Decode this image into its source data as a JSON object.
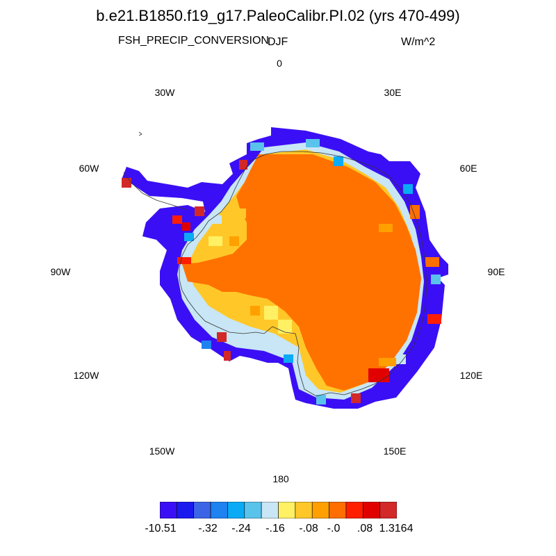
{
  "title": "b.e21.B1850.f19_g17.PaleoCalibr.PI.02 (yrs 470-499)",
  "variable": "FSH_PRECIP_CONVERSION",
  "season": "DJF",
  "units": "W/m^2",
  "longitude_labels": [
    "0",
    "30E",
    "60E",
    "90E",
    "120E",
    "150E",
    "180",
    "150W",
    "120W",
    "90W",
    "60W",
    "30W"
  ],
  "colorbar": {
    "colors": [
      "#3b0ff5",
      "#1a1aef",
      "#3c64e6",
      "#1e82f0",
      "#0aaaf5",
      "#5ac3eb",
      "#c8e6f5",
      "#fff064",
      "#ffc828",
      "#ffa000",
      "#ff6e00",
      "#ff1e00",
      "#e10000",
      "#d22828"
    ],
    "labels": [
      "-10.51",
      "-.32",
      "-.24",
      "-.16",
      "-.08",
      "-.0",
      ".08",
      "1.3164"
    ]
  },
  "map": {
    "interior_color": "#ff7200",
    "coast_color": "#3b0ff5",
    "projection": "south-polar stereographic",
    "description": "Antarctica"
  }
}
